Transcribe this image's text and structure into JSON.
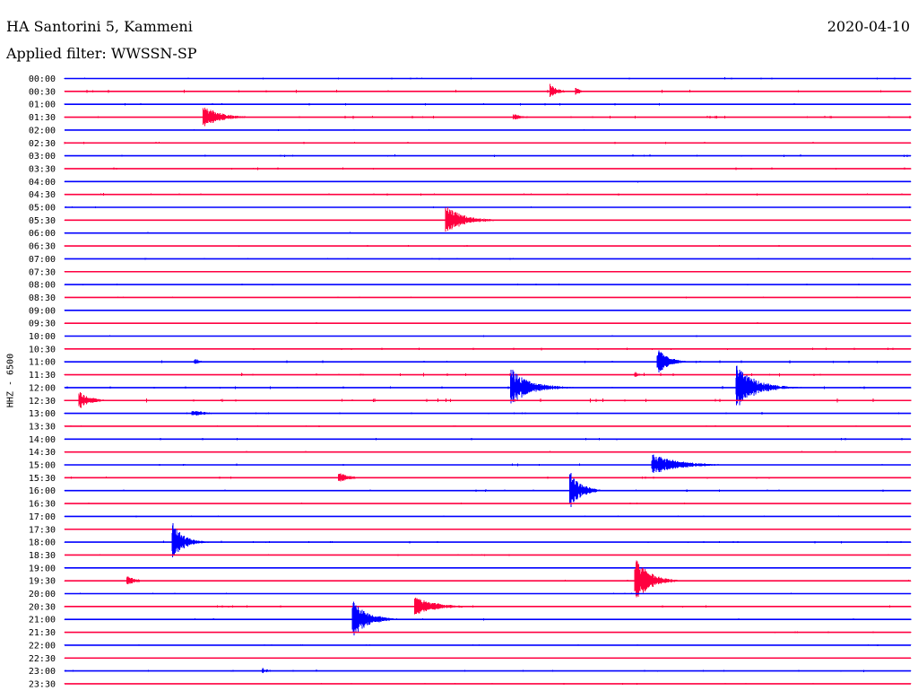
{
  "header": {
    "station": "HA Santorini 5, Kammeni",
    "date": "2020-04-10",
    "filter": "Applied filter: WWSSN-SP"
  },
  "channel_label": "HHZ - 6500",
  "colors": {
    "even_trace": "#0000ff",
    "odd_trace": "#ff0040",
    "text": "#000000"
  },
  "chart_data": {
    "type": "line",
    "title": "",
    "xlabel": "",
    "ylabel": "HHZ - 6500",
    "row_labels": [
      "00:00",
      "00:30",
      "01:00",
      "01:30",
      "02:00",
      "02:30",
      "03:00",
      "03:30",
      "04:00",
      "04:30",
      "05:00",
      "05:30",
      "06:00",
      "06:30",
      "07:00",
      "07:30",
      "08:00",
      "08:30",
      "09:00",
      "09:30",
      "10:00",
      "10:30",
      "11:00",
      "11:30",
      "12:00",
      "12:30",
      "13:00",
      "13:30",
      "14:00",
      "14:30",
      "15:00",
      "15:30",
      "16:00",
      "16:30",
      "17:00",
      "17:30",
      "18:00",
      "18:30",
      "19:00",
      "19:30",
      "20:00",
      "20:30",
      "21:00",
      "21:30",
      "22:00",
      "22:30",
      "23:00",
      "23:30"
    ],
    "row_minutes": 30,
    "noise_level": [
      0.22,
      0.28,
      0.22,
      0.28,
      0.15,
      0.22,
      0.22,
      0.28,
      0.15,
      0.22,
      0.15,
      0.15,
      0.15,
      0.15,
      0.15,
      0.15,
      0.15,
      0.15,
      0.15,
      0.15,
      0.15,
      0.22,
      0.28,
      0.28,
      0.28,
      0.35,
      0.22,
      0.15,
      0.22,
      0.15,
      0.22,
      0.22,
      0.22,
      0.15,
      0.15,
      0.15,
      0.22,
      0.15,
      0.15,
      0.15,
      0.15,
      0.22,
      0.22,
      0.15,
      0.15,
      0.15,
      0.22,
      0.15
    ],
    "events": [
      {
        "row": 1,
        "minute": 17.2,
        "amplitude": 9,
        "duration": 0.5
      },
      {
        "row": 1,
        "minute": 18.1,
        "amplitude": 6,
        "duration": 0.3
      },
      {
        "row": 3,
        "minute": 4.9,
        "amplitude": 14,
        "duration": 1.2
      },
      {
        "row": 3,
        "minute": 15.9,
        "amplitude": 4,
        "duration": 0.7
      },
      {
        "row": 11,
        "minute": 13.5,
        "amplitude": 17,
        "duration": 1.3
      },
      {
        "row": 22,
        "minute": 21.0,
        "amplitude": 16,
        "duration": 0.8
      },
      {
        "row": 22,
        "minute": 4.6,
        "amplitude": 4,
        "duration": 0.5
      },
      {
        "row": 23,
        "minute": 20.2,
        "amplitude": 5,
        "duration": 0.2
      },
      {
        "row": 24,
        "minute": 15.8,
        "amplitude": 23,
        "duration": 1.4
      },
      {
        "row": 24,
        "minute": 23.8,
        "amplitude": 26,
        "duration": 1.4
      },
      {
        "row": 25,
        "minute": 0.5,
        "amplitude": 11,
        "duration": 0.8
      },
      {
        "row": 26,
        "minute": 4.5,
        "amplitude": 4,
        "duration": 1.0
      },
      {
        "row": 30,
        "minute": 20.8,
        "amplitude": 13,
        "duration": 1.9
      },
      {
        "row": 31,
        "minute": 9.7,
        "amplitude": 6,
        "duration": 0.9
      },
      {
        "row": 32,
        "minute": 17.9,
        "amplitude": 23,
        "duration": 0.8
      },
      {
        "row": 36,
        "minute": 3.8,
        "amplitude": 24,
        "duration": 0.8
      },
      {
        "row": 39,
        "minute": 2.2,
        "amplitude": 7,
        "duration": 0.6
      },
      {
        "row": 39,
        "minute": 20.2,
        "amplitude": 30,
        "duration": 1.0
      },
      {
        "row": 41,
        "minute": 12.4,
        "amplitude": 11,
        "duration": 1.6
      },
      {
        "row": 41,
        "minute": 12.6,
        "amplitude": 6,
        "duration": 0.5
      },
      {
        "row": 42,
        "minute": 10.2,
        "amplitude": 22,
        "duration": 1.1
      },
      {
        "row": 42,
        "minute": 11.1,
        "amplitude": 5,
        "duration": 0.6
      },
      {
        "row": 46,
        "minute": 7.0,
        "amplitude": 4,
        "duration": 0.4
      }
    ]
  }
}
